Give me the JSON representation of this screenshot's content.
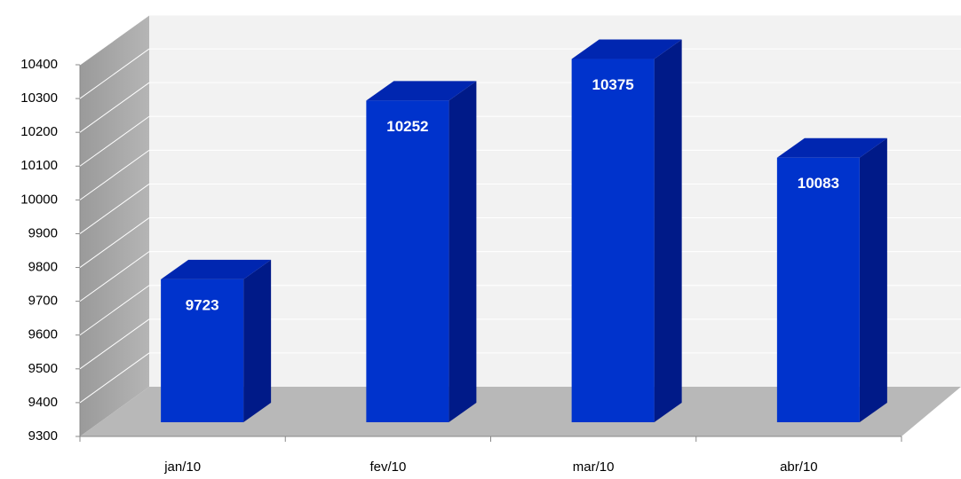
{
  "chart_data": {
    "type": "bar3d",
    "categories": [
      "jan/10",
      "fev/10",
      "mar/10",
      "abr/10"
    ],
    "values": [
      9723,
      10252,
      10375,
      10083
    ],
    "color": "#0033cc",
    "ylim": [
      9300,
      10400
    ],
    "yticks": [
      9300,
      9400,
      9500,
      9600,
      9700,
      9800,
      9900,
      10000,
      10100,
      10200,
      10300,
      10400
    ],
    "grid": true
  }
}
